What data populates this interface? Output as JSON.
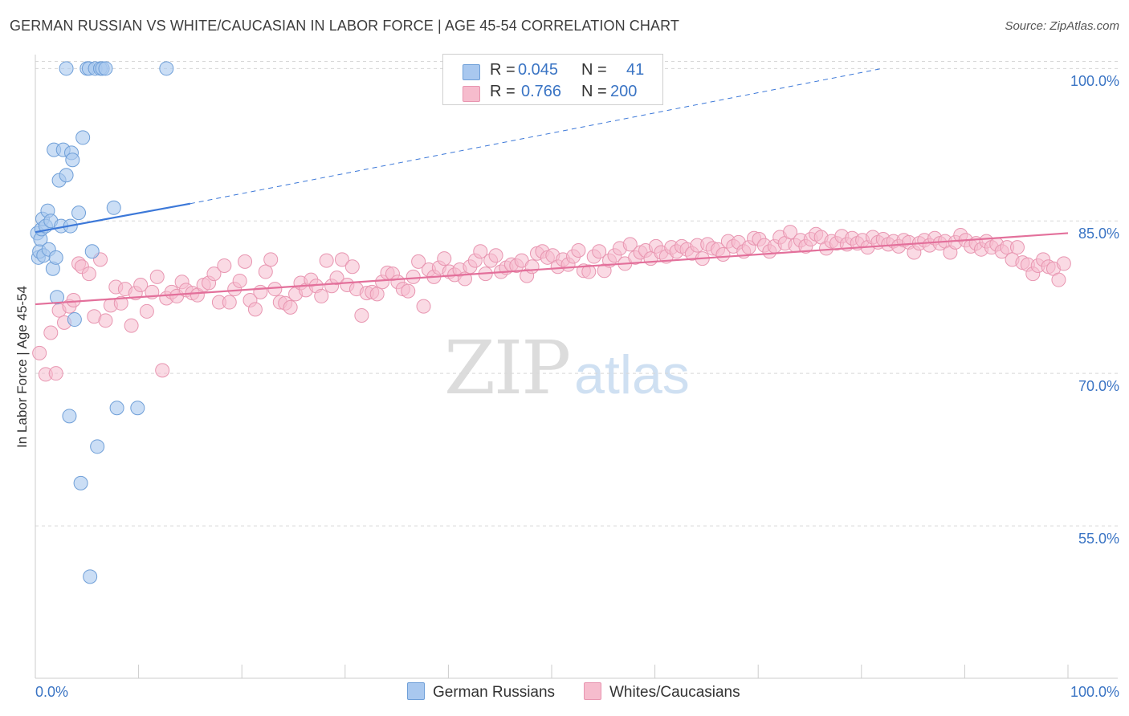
{
  "title": "GERMAN RUSSIAN VS WHITE/CAUCASIAN IN LABOR FORCE | AGE 45-54 CORRELATION CHART",
  "source": "Source: ZipAtlas.com",
  "watermark": {
    "zip": "ZIP",
    "atlas": "atlas"
  },
  "legend_top": [
    {
      "r_label": "R =",
      "r_value": "0.045",
      "n_label": "N =",
      "n_value": "41",
      "color": "#a9c8ef"
    },
    {
      "r_label": "R =",
      "r_value": "0.766",
      "n_label": "N =",
      "n_value": "200",
      "color": "#f6bccd"
    }
  ],
  "legend_bottom": [
    {
      "label": "German Russians",
      "color": "#a9c8ef"
    },
    {
      "label": "Whites/Caucasians",
      "color": "#f6bccd"
    }
  ],
  "chart_data": {
    "type": "scatter",
    "title": "GERMAN RUSSIAN VS WHITE/CAUCASIAN IN LABOR FORCE | AGE 45-54 CORRELATION CHART",
    "xlabel": "",
    "ylabel": "In Labor Force | Age 45-54",
    "xlim": [
      0,
      100
    ],
    "ylim": [
      40,
      102
    ],
    "x_tick_labels": [
      "0.0%",
      "100.0%"
    ],
    "y_ticks": [
      55,
      70,
      85,
      100
    ],
    "y_tick_labels": [
      "55.0%",
      "70.0%",
      "85.0%",
      "100.0%"
    ],
    "grid": true,
    "series": [
      {
        "name": "German Russians",
        "color": "#3c78d8",
        "fill": "#a9c8ef",
        "trend": {
          "x0": 0,
          "y0": 83.9,
          "x1": 15,
          "y1": 86.7,
          "dash_to_x": 82,
          "dash_to_y": 100
        },
        "points": [
          [
            0.2,
            83.8
          ],
          [
            0.3,
            81.4
          ],
          [
            0.4,
            82.0
          ],
          [
            0.5,
            83.2
          ],
          [
            0.6,
            84.2
          ],
          [
            0.7,
            85.2
          ],
          [
            0.8,
            81.6
          ],
          [
            1.0,
            84.5
          ],
          [
            1.2,
            86.0
          ],
          [
            1.3,
            82.2
          ],
          [
            1.5,
            85.0
          ],
          [
            1.7,
            80.3
          ],
          [
            1.8,
            92.0
          ],
          [
            2.0,
            81.4
          ],
          [
            2.1,
            77.5
          ],
          [
            2.3,
            89.0
          ],
          [
            2.5,
            84.5
          ],
          [
            2.7,
            92.0
          ],
          [
            3.0,
            100.0
          ],
          [
            3.0,
            89.5
          ],
          [
            3.3,
            65.8
          ],
          [
            3.4,
            84.5
          ],
          [
            3.5,
            91.7
          ],
          [
            3.6,
            91.0
          ],
          [
            3.8,
            75.3
          ],
          [
            4.2,
            85.8
          ],
          [
            4.4,
            59.2
          ],
          [
            4.6,
            93.2
          ],
          [
            5.0,
            100.0
          ],
          [
            5.2,
            100.0
          ],
          [
            5.3,
            50.0
          ],
          [
            5.5,
            82.0
          ],
          [
            5.8,
            100.0
          ],
          [
            6.0,
            62.8
          ],
          [
            6.3,
            100.0
          ],
          [
            6.5,
            100.0
          ],
          [
            6.8,
            100.0
          ],
          [
            7.6,
            86.3
          ],
          [
            7.9,
            66.6
          ],
          [
            9.9,
            66.6
          ],
          [
            12.7,
            100.0
          ]
        ]
      },
      {
        "name": "Whites/Caucasians",
        "color": "#e3709b",
        "fill": "#f6bccd",
        "trend": {
          "x0": 0,
          "y0": 76.8,
          "x1": 100,
          "y1": 83.8
        },
        "points": [
          [
            0.4,
            72.0
          ],
          [
            1.0,
            69.9
          ],
          [
            1.5,
            74.0
          ],
          [
            2.0,
            70.0
          ],
          [
            2.3,
            76.2
          ],
          [
            2.8,
            75.0
          ],
          [
            3.3,
            76.6
          ],
          [
            3.7,
            77.2
          ],
          [
            4.2,
            80.8
          ],
          [
            4.5,
            80.5
          ],
          [
            5.2,
            79.8
          ],
          [
            5.7,
            75.6
          ],
          [
            6.3,
            81.2
          ],
          [
            6.8,
            75.2
          ],
          [
            7.3,
            76.7
          ],
          [
            7.8,
            78.5
          ],
          [
            8.3,
            76.9
          ],
          [
            8.7,
            78.3
          ],
          [
            9.3,
            74.7
          ],
          [
            9.7,
            77.9
          ],
          [
            10.2,
            78.7
          ],
          [
            10.8,
            76.1
          ],
          [
            11.3,
            78.0
          ],
          [
            11.8,
            79.5
          ],
          [
            12.3,
            70.3
          ],
          [
            12.7,
            77.4
          ],
          [
            13.2,
            78.0
          ],
          [
            13.7,
            77.6
          ],
          [
            14.2,
            79.0
          ],
          [
            14.6,
            78.2
          ],
          [
            15.2,
            77.9
          ],
          [
            15.7,
            77.7
          ],
          [
            16.3,
            78.7
          ],
          [
            16.8,
            78.9
          ],
          [
            17.3,
            79.8
          ],
          [
            17.8,
            77.0
          ],
          [
            18.3,
            80.6
          ],
          [
            18.8,
            77.0
          ],
          [
            19.3,
            78.3
          ],
          [
            19.8,
            79.1
          ],
          [
            20.3,
            81.0
          ],
          [
            20.8,
            77.2
          ],
          [
            21.3,
            76.3
          ],
          [
            21.8,
            78.0
          ],
          [
            22.3,
            80.0
          ],
          [
            22.8,
            81.2
          ],
          [
            23.2,
            78.3
          ],
          [
            23.7,
            77.0
          ],
          [
            24.2,
            76.9
          ],
          [
            24.7,
            76.5
          ],
          [
            25.2,
            77.8
          ],
          [
            25.7,
            78.9
          ],
          [
            26.2,
            78.2
          ],
          [
            26.7,
            79.2
          ],
          [
            27.2,
            78.6
          ],
          [
            27.7,
            77.6
          ],
          [
            28.2,
            81.1
          ],
          [
            28.7,
            78.6
          ],
          [
            29.2,
            79.4
          ],
          [
            29.7,
            81.2
          ],
          [
            30.2,
            78.7
          ],
          [
            30.7,
            80.5
          ],
          [
            31.1,
            78.3
          ],
          [
            31.6,
            75.7
          ],
          [
            32.1,
            77.9
          ],
          [
            32.6,
            78.0
          ],
          [
            33.1,
            77.8
          ],
          [
            33.6,
            79.0
          ],
          [
            34.1,
            79.9
          ],
          [
            34.6,
            79.8
          ],
          [
            35.1,
            79.0
          ],
          [
            35.6,
            78.3
          ],
          [
            36.1,
            78.1
          ],
          [
            36.6,
            79.5
          ],
          [
            37.1,
            81.0
          ],
          [
            37.6,
            76.6
          ],
          [
            38.1,
            80.2
          ],
          [
            38.6,
            79.5
          ],
          [
            39.1,
            80.4
          ],
          [
            39.6,
            81.3
          ],
          [
            40.1,
            80.0
          ],
          [
            40.6,
            79.7
          ],
          [
            41.1,
            80.2
          ],
          [
            41.6,
            79.3
          ],
          [
            42.1,
            80.5
          ],
          [
            42.6,
            81.1
          ],
          [
            43.1,
            82.0
          ],
          [
            43.6,
            79.8
          ],
          [
            44.1,
            81.1
          ],
          [
            44.6,
            81.6
          ],
          [
            45.1,
            80.0
          ],
          [
            45.6,
            80.4
          ],
          [
            46.1,
            80.7
          ],
          [
            46.6,
            80.6
          ],
          [
            47.1,
            81.1
          ],
          [
            47.6,
            79.6
          ],
          [
            48.1,
            80.5
          ],
          [
            48.6,
            81.8
          ],
          [
            49.1,
            82.0
          ],
          [
            49.6,
            81.4
          ],
          [
            50.1,
            81.6
          ],
          [
            50.6,
            80.5
          ],
          [
            51.1,
            81.2
          ],
          [
            51.6,
            80.7
          ],
          [
            52.1,
            81.5
          ],
          [
            52.6,
            82.1
          ],
          [
            53.1,
            80.1
          ],
          [
            53.6,
            80.0
          ],
          [
            54.1,
            81.5
          ],
          [
            54.6,
            82.0
          ],
          [
            55.1,
            80.1
          ],
          [
            55.6,
            81.1
          ],
          [
            56.1,
            81.6
          ],
          [
            56.6,
            82.3
          ],
          [
            57.1,
            80.8
          ],
          [
            57.6,
            82.7
          ],
          [
            58.1,
            81.4
          ],
          [
            58.6,
            81.9
          ],
          [
            59.1,
            82.1
          ],
          [
            59.6,
            81.3
          ],
          [
            60.1,
            82.5
          ],
          [
            60.6,
            81.9
          ],
          [
            61.1,
            81.5
          ],
          [
            61.6,
            82.4
          ],
          [
            62.1,
            82.0
          ],
          [
            62.6,
            82.5
          ],
          [
            63.1,
            82.2
          ],
          [
            63.6,
            81.8
          ],
          [
            64.1,
            82.6
          ],
          [
            64.6,
            81.3
          ],
          [
            65.1,
            82.7
          ],
          [
            65.6,
            82.3
          ],
          [
            66.1,
            82.2
          ],
          [
            66.6,
            81.7
          ],
          [
            67.1,
            83.0
          ],
          [
            67.6,
            82.5
          ],
          [
            68.1,
            82.9
          ],
          [
            68.6,
            82.0
          ],
          [
            69.1,
            82.4
          ],
          [
            69.6,
            83.3
          ],
          [
            70.1,
            83.2
          ],
          [
            70.6,
            82.6
          ],
          [
            71.1,
            82.0
          ],
          [
            71.6,
            82.5
          ],
          [
            72.1,
            83.4
          ],
          [
            72.6,
            82.8
          ],
          [
            73.1,
            83.9
          ],
          [
            73.6,
            82.6
          ],
          [
            74.1,
            83.1
          ],
          [
            74.6,
            82.5
          ],
          [
            75.1,
            83.2
          ],
          [
            75.6,
            83.7
          ],
          [
            76.1,
            83.4
          ],
          [
            76.6,
            82.3
          ],
          [
            77.1,
            83.0
          ],
          [
            77.6,
            82.8
          ],
          [
            78.1,
            83.5
          ],
          [
            78.6,
            82.7
          ],
          [
            79.1,
            83.3
          ],
          [
            79.6,
            82.8
          ],
          [
            80.1,
            83.1
          ],
          [
            80.6,
            82.4
          ],
          [
            81.1,
            83.4
          ],
          [
            81.6,
            82.9
          ],
          [
            82.1,
            83.2
          ],
          [
            82.6,
            82.7
          ],
          [
            83.1,
            83.0
          ],
          [
            83.6,
            82.5
          ],
          [
            84.1,
            83.1
          ],
          [
            84.6,
            82.9
          ],
          [
            85.1,
            81.9
          ],
          [
            85.6,
            82.8
          ],
          [
            86.1,
            83.1
          ],
          [
            86.6,
            82.6
          ],
          [
            87.1,
            83.3
          ],
          [
            87.6,
            82.8
          ],
          [
            88.1,
            83.0
          ],
          [
            88.6,
            81.9
          ],
          [
            89.1,
            82.9
          ],
          [
            89.6,
            83.6
          ],
          [
            90.1,
            83.1
          ],
          [
            90.6,
            82.5
          ],
          [
            91.1,
            82.8
          ],
          [
            91.6,
            82.2
          ],
          [
            92.1,
            83.0
          ],
          [
            92.6,
            82.4
          ],
          [
            93.1,
            82.7
          ],
          [
            93.6,
            82.0
          ],
          [
            94.1,
            82.4
          ],
          [
            94.6,
            81.2
          ],
          [
            95.1,
            82.4
          ],
          [
            95.6,
            80.9
          ],
          [
            96.1,
            80.7
          ],
          [
            96.6,
            79.8
          ],
          [
            97.1,
            80.6
          ],
          [
            97.6,
            81.2
          ],
          [
            98.1,
            80.5
          ],
          [
            98.6,
            80.3
          ],
          [
            99.1,
            79.2
          ],
          [
            99.6,
            80.8
          ]
        ]
      }
    ]
  }
}
